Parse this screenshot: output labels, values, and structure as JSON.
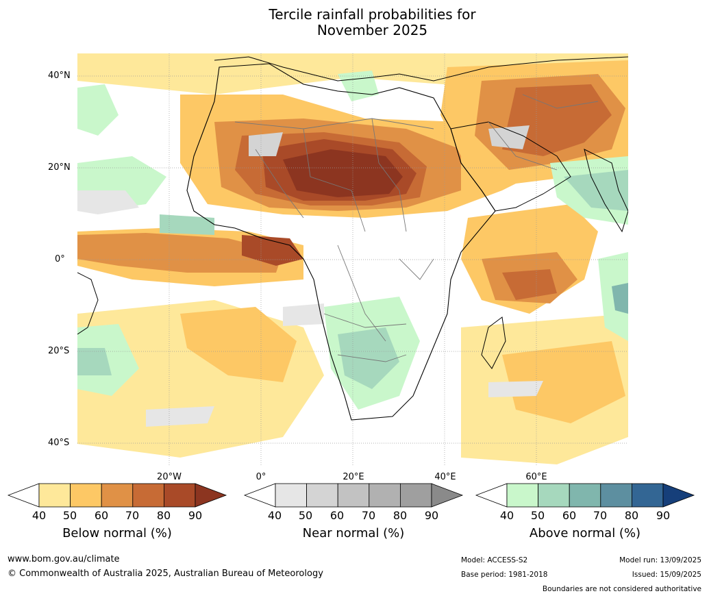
{
  "title_line1": "Tercile rainfall probabilities for",
  "title_line2": "November 2025",
  "lat_labels": [
    "40°N",
    "20°N",
    "0°",
    "20°S",
    "40°S"
  ],
  "lon_labels": [
    "20°W",
    "0°",
    "20°E",
    "40°E",
    "60°E"
  ],
  "colorbars": {
    "below": {
      "title": "Below normal (%)",
      "ticks": [
        "40",
        "50",
        "60",
        "70",
        "80",
        "90"
      ],
      "colors": [
        "#ffffff",
        "#fee89a",
        "#fdc865",
        "#e09146",
        "#c76b35",
        "#a94a28",
        "#8c3520"
      ]
    },
    "near": {
      "title": "Near normal (%)",
      "ticks": [
        "40",
        "50",
        "60",
        "70",
        "80",
        "90"
      ],
      "colors": [
        "#ffffff",
        "#e6e6e6",
        "#d4d4d4",
        "#c2c2c2",
        "#b1b1b1",
        "#9f9f9f",
        "#8a8a8a"
      ]
    },
    "above": {
      "title": "Above normal (%)",
      "ticks": [
        "40",
        "50",
        "60",
        "70",
        "80",
        "90"
      ],
      "colors": [
        "#ffffff",
        "#c9f7cb",
        "#a6d8bd",
        "#80b6ad",
        "#5d8fa0",
        "#336694",
        "#163f7a"
      ]
    }
  },
  "footer": {
    "website": "www.bom.gov.au/climate",
    "copyright": "© Commonwealth of Australia 2025, Australian Bureau of Meteorology",
    "model": "Model: ACCESS-S2",
    "base_period": "Base period: 1981-2018",
    "model_run": "Model run: 13/09/2025",
    "issued": "Issued: 15/09/2025",
    "disclaimer": "Boundaries are not considered authoritative"
  }
}
